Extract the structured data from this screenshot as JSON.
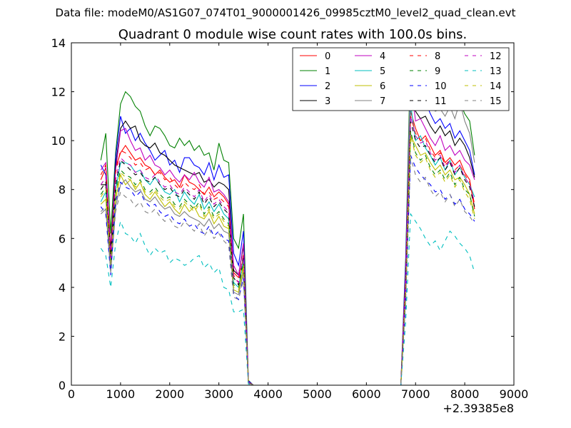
{
  "header": {
    "suptitle": "Data file: modeM0/AS1G07_074T01_9000001426_09985cztM0_level2_quad_clean.evt"
  },
  "chart_data": {
    "type": "line",
    "title": "Quadrant 0 module wise count rates with 100.0s bins.",
    "xlabel": "",
    "ylabel": "",
    "xlim": [
      0,
      9000
    ],
    "ylim": [
      0,
      14
    ],
    "x_offset_label": "+2.39385e8",
    "xticks": [
      0,
      1000,
      2000,
      3000,
      4000,
      5000,
      6000,
      7000,
      8000,
      9000
    ],
    "yticks": [
      0,
      2,
      4,
      6,
      8,
      10,
      12,
      14
    ],
    "grid": false,
    "legend_position": "top-right",
    "legend_columns": 4,
    "x": [
      600,
      700,
      800,
      900,
      1000,
      1100,
      1200,
      1300,
      1400,
      1500,
      1600,
      1700,
      1800,
      1900,
      2000,
      2100,
      2200,
      2300,
      2400,
      2500,
      2600,
      2700,
      2800,
      2900,
      3000,
      3100,
      3200,
      3300,
      3400,
      3500,
      3600,
      3700,
      3800,
      6600,
      6700,
      6800,
      6900,
      7000,
      7100,
      7200,
      7300,
      7400,
      7500,
      7600,
      7700,
      7800,
      7900,
      8000,
      8100,
      8200
    ],
    "series": [
      {
        "name": "0",
        "color": "#ff0000",
        "dash": "solid",
        "values": [
          8.4,
          8.9,
          5.6,
          8.9,
          9.5,
          9.8,
          9.5,
          9.2,
          9.3,
          9.0,
          8.9,
          8.6,
          8.8,
          8.5,
          8.3,
          8.4,
          8.1,
          8.6,
          8.3,
          8.2,
          8.0,
          7.8,
          8.1,
          7.7,
          7.9,
          7.7,
          7.4,
          4.6,
          4.4,
          5.2,
          0.15,
          0,
          0,
          0,
          0,
          4.2,
          11.2,
          10.5,
          10.0,
          10.2,
          9.8,
          9.4,
          9.6,
          9.1,
          9.3,
          9.0,
          9.2,
          8.7,
          8.4,
          7.2
        ]
      },
      {
        "name": "1",
        "color": "#008000",
        "dash": "solid",
        "values": [
          9.2,
          10.3,
          6.2,
          9.5,
          11.5,
          12.0,
          11.8,
          11.4,
          11.2,
          10.6,
          10.2,
          10.6,
          10.5,
          10.2,
          9.8,
          9.7,
          10.1,
          9.8,
          10.0,
          9.6,
          9.8,
          9.4,
          9.5,
          8.8,
          9.9,
          9.2,
          9.1,
          6.0,
          5.6,
          7.0,
          0.2,
          0,
          0,
          0,
          0,
          5.2,
          13.7,
          13.7,
          12.9,
          12.4,
          12.2,
          12.3,
          12.0,
          11.9,
          11.5,
          11.4,
          11.6,
          11.1,
          10.8,
          9.4
        ]
      },
      {
        "name": "2",
        "color": "#0000ff",
        "dash": "solid",
        "values": [
          9.0,
          8.6,
          5.3,
          9.3,
          11.0,
          10.3,
          10.5,
          10.0,
          10.3,
          9.9,
          9.6,
          9.2,
          9.4,
          9.6,
          9.0,
          9.2,
          8.7,
          9.3,
          9.3,
          9.0,
          8.9,
          8.6,
          9.1,
          8.4,
          9.0,
          8.5,
          8.6,
          5.4,
          4.9,
          6.3,
          0.18,
          0,
          0,
          0,
          0,
          5.0,
          12.9,
          12.6,
          11.3,
          11.6,
          11.1,
          10.7,
          10.9,
          10.5,
          10.7,
          10.1,
          10.4,
          10.0,
          9.6,
          8.6
        ]
      },
      {
        "name": "3",
        "color": "#000000",
        "dash": "solid",
        "values": [
          8.2,
          8.2,
          5.5,
          9.0,
          10.5,
          10.8,
          10.5,
          10.6,
          10.0,
          9.8,
          9.7,
          9.9,
          9.5,
          9.4,
          9.2,
          9.0,
          8.9,
          8.8,
          8.7,
          8.6,
          8.7,
          8.3,
          8.4,
          8.1,
          8.3,
          8.2,
          8.0,
          4.7,
          4.5,
          5.7,
          0.12,
          0,
          0,
          0,
          0,
          4.4,
          12.2,
          11.2,
          10.9,
          11.0,
          10.6,
          10.3,
          10.6,
          10.2,
          10.4,
          9.8,
          10.1,
          9.8,
          9.3,
          8.5
        ]
      },
      {
        "name": "4",
        "color": "#bf00bf",
        "dash": "solid",
        "values": [
          8.8,
          9.1,
          5.4,
          8.8,
          10.4,
          10.5,
          10.0,
          9.6,
          9.7,
          9.2,
          9.4,
          9.0,
          8.9,
          8.6,
          8.8,
          8.5,
          8.3,
          8.6,
          8.4,
          8.7,
          8.3,
          8.1,
          8.5,
          7.9,
          8.0,
          7.8,
          7.5,
          4.9,
          4.5,
          5.8,
          0.14,
          0,
          0,
          0,
          0,
          4.6,
          12.5,
          10.8,
          10.9,
          10.5,
          10.1,
          9.8,
          10.2,
          9.6,
          9.8,
          9.4,
          9.6,
          9.2,
          9.0,
          8.4
        ]
      },
      {
        "name": "5",
        "color": "#00bfbf",
        "dash": "solid",
        "values": [
          7.5,
          7.9,
          4.9,
          8.0,
          9.1,
          9.1,
          9.0,
          8.7,
          8.8,
          8.4,
          8.2,
          8.5,
          8.2,
          7.9,
          7.8,
          8.0,
          7.5,
          7.9,
          7.6,
          7.4,
          7.8,
          7.2,
          7.5,
          7.1,
          7.4,
          7.0,
          6.8,
          4.2,
          4.0,
          5.1,
          0.1,
          0,
          0,
          0,
          0,
          3.9,
          11.5,
          10.0,
          10.2,
          9.7,
          9.4,
          9.0,
          9.3,
          8.8,
          9.2,
          8.6,
          8.9,
          8.5,
          8.2,
          7.7
        ]
      },
      {
        "name": "6",
        "color": "#bfbf00",
        "dash": "solid",
        "values": [
          7.4,
          7.6,
          4.8,
          7.6,
          8.6,
          8.2,
          8.4,
          8.0,
          8.3,
          7.8,
          7.6,
          7.9,
          7.6,
          7.3,
          7.5,
          7.2,
          7.0,
          7.4,
          7.1,
          7.3,
          6.9,
          6.8,
          7.1,
          6.6,
          6.9,
          6.5,
          6.4,
          3.9,
          3.8,
          4.8,
          0.1,
          0,
          0,
          0,
          0,
          3.7,
          10.2,
          9.8,
          9.4,
          9.5,
          9.1,
          8.8,
          9.0,
          8.6,
          8.8,
          8.4,
          8.5,
          8.2,
          7.8,
          7.0
        ]
      },
      {
        "name": "7",
        "color": "#808080",
        "dash": "solid",
        "values": [
          7.0,
          7.2,
          4.6,
          7.3,
          8.2,
          8.4,
          8.1,
          7.9,
          8.0,
          7.6,
          7.5,
          7.7,
          7.4,
          7.2,
          7.3,
          7.0,
          6.9,
          7.1,
          6.9,
          6.8,
          6.7,
          6.5,
          6.8,
          6.4,
          6.6,
          6.3,
          6.2,
          3.8,
          3.7,
          4.6,
          0.1,
          0,
          0,
          0,
          0,
          3.6,
          13.5,
          12.4,
          12.0,
          11.5,
          11.8,
          11.2,
          11.3,
          11.0,
          11.4,
          10.9,
          11.6,
          10.8,
          10.3,
          9.1
        ]
      },
      {
        "name": "8",
        "color": "#ff0000",
        "dash": "dash",
        "values": [
          8.6,
          9.0,
          5.2,
          8.7,
          9.6,
          9.5,
          9.3,
          9.0,
          9.1,
          8.8,
          8.9,
          8.6,
          8.7,
          8.4,
          8.5,
          8.2,
          8.0,
          8.3,
          8.1,
          8.0,
          8.2,
          7.8,
          7.9,
          7.6,
          7.7,
          7.5,
          7.3,
          4.5,
          4.2,
          5.4,
          0.12,
          0,
          0,
          0,
          0,
          4.3,
          11.0,
          10.3,
          10.0,
          10.1,
          9.6,
          9.3,
          9.5,
          9.0,
          9.2,
          8.8,
          9.0,
          8.6,
          8.3,
          7.4
        ]
      },
      {
        "name": "9",
        "color": "#008000",
        "dash": "dash",
        "values": [
          7.8,
          8.1,
          5.0,
          7.9,
          8.8,
          8.6,
          8.5,
          8.2,
          8.4,
          8.0,
          7.9,
          8.1,
          7.8,
          7.6,
          7.7,
          7.4,
          7.3,
          7.6,
          7.4,
          7.2,
          7.5,
          7.0,
          7.3,
          6.9,
          7.1,
          6.8,
          6.6,
          4.1,
          4.0,
          5.0,
          0.1,
          0,
          0,
          0,
          0,
          3.9,
          10.4,
          9.5,
          9.2,
          9.4,
          8.9,
          8.6,
          8.8,
          8.4,
          8.7,
          8.2,
          8.5,
          8.0,
          7.8,
          6.9
        ]
      },
      {
        "name": "10",
        "color": "#0000ff",
        "dash": "dash",
        "values": [
          7.3,
          7.0,
          4.5,
          7.5,
          8.3,
          8.1,
          8.0,
          7.7,
          7.9,
          7.5,
          7.3,
          7.4,
          7.1,
          6.9,
          7.0,
          6.7,
          6.6,
          6.8,
          6.5,
          6.6,
          6.3,
          6.2,
          6.5,
          6.1,
          6.3,
          6.0,
          5.9,
          3.7,
          3.5,
          4.4,
          0.1,
          0,
          0,
          0,
          0,
          3.4,
          9.4,
          8.9,
          8.6,
          8.4,
          8.2,
          7.9,
          8.0,
          7.6,
          7.8,
          7.4,
          7.6,
          7.2,
          7.0,
          6.7
        ]
      },
      {
        "name": "11",
        "color": "#000000",
        "dash": "dash",
        "values": [
          8.0,
          8.3,
          5.3,
          8.2,
          9.2,
          9.0,
          8.8,
          8.6,
          8.7,
          8.4,
          8.3,
          8.5,
          8.2,
          8.0,
          8.1,
          7.8,
          7.7,
          8.0,
          7.8,
          7.6,
          7.9,
          7.4,
          7.7,
          7.3,
          7.5,
          7.2,
          7.0,
          4.4,
          4.1,
          5.3,
          0.12,
          0,
          0,
          0,
          0,
          4.1,
          10.8,
          10.0,
          9.7,
          9.8,
          9.4,
          9.1,
          9.3,
          8.8,
          9.1,
          8.6,
          8.9,
          8.4,
          8.1,
          7.3
        ]
      },
      {
        "name": "12",
        "color": "#bf00bf",
        "dash": "dash",
        "values": [
          8.2,
          8.5,
          5.1,
          8.4,
          9.3,
          9.1,
          9.0,
          8.7,
          8.8,
          8.5,
          8.4,
          8.6,
          8.3,
          8.1,
          8.2,
          7.9,
          7.8,
          8.1,
          7.9,
          7.7,
          8.0,
          7.5,
          7.8,
          7.4,
          7.6,
          7.3,
          7.1,
          4.4,
          4.2,
          5.3,
          0.12,
          0,
          0,
          0,
          0,
          4.2,
          11.0,
          10.2,
          9.9,
          10.0,
          9.5,
          9.2,
          9.4,
          8.9,
          9.2,
          8.7,
          9.0,
          8.5,
          8.2,
          7.5
        ]
      },
      {
        "name": "13",
        "color": "#00bfbf",
        "dash": "dash",
        "values": [
          5.6,
          5.3,
          4.0,
          5.8,
          6.7,
          6.2,
          6.1,
          5.8,
          6.2,
          5.7,
          5.3,
          5.6,
          5.4,
          5.5,
          5.0,
          5.2,
          5.1,
          4.9,
          5.0,
          5.2,
          5.3,
          4.8,
          5.0,
          4.6,
          4.8,
          4.0,
          3.9,
          3.0,
          3.0,
          3.1,
          0.05,
          0,
          0,
          0,
          0,
          2.6,
          7.0,
          6.7,
          6.4,
          6.0,
          5.7,
          5.9,
          5.5,
          5.9,
          6.3,
          6.1,
          5.8,
          5.6,
          5.3,
          4.6
        ]
      },
      {
        "name": "14",
        "color": "#bfbf00",
        "dash": "dash",
        "values": [
          7.7,
          8.0,
          4.9,
          7.8,
          8.7,
          8.5,
          8.4,
          8.1,
          8.3,
          7.9,
          7.8,
          8.0,
          7.7,
          7.5,
          7.6,
          7.3,
          7.2,
          7.5,
          7.3,
          7.1,
          7.4,
          6.9,
          7.2,
          6.8,
          7.0,
          6.7,
          6.5,
          4.0,
          3.9,
          4.9,
          0.1,
          0,
          0,
          0,
          0,
          3.8,
          10.2,
          9.4,
          9.1,
          9.3,
          8.8,
          8.5,
          8.7,
          8.3,
          8.6,
          8.1,
          8.4,
          7.9,
          7.6,
          6.8
        ]
      },
      {
        "name": "15",
        "color": "#808080",
        "dash": "dash",
        "values": [
          7.1,
          7.3,
          4.7,
          7.1,
          7.9,
          7.7,
          7.6,
          7.3,
          7.5,
          7.1,
          7.0,
          7.2,
          6.9,
          6.7,
          6.8,
          6.5,
          6.4,
          6.7,
          6.5,
          6.3,
          6.6,
          6.1,
          6.4,
          6.0,
          6.2,
          5.9,
          5.7,
          3.6,
          3.5,
          4.3,
          0.08,
          0,
          0,
          0,
          0,
          3.4,
          9.3,
          8.6,
          8.3,
          8.5,
          8.0,
          7.7,
          7.9,
          7.5,
          7.8,
          7.3,
          7.6,
          7.1,
          6.9,
          6.6
        ]
      }
    ]
  }
}
